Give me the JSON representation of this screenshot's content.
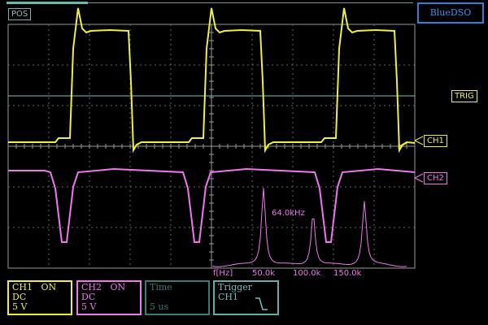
{
  "header": {
    "mode_label": "POS",
    "brand": "BlueDSO",
    "progress_fraction": 0.2
  },
  "markers": {
    "trigger": "TRIG",
    "ch1": "CH1",
    "ch2": "CH2"
  },
  "spectrum": {
    "peak_label": "64.0kHz",
    "axis_unit": "f[Hz]",
    "ticks": [
      "50.0k",
      "100.0k",
      "150.0k"
    ]
  },
  "status": {
    "ch1": {
      "name": "CH1",
      "state": "ON",
      "coupling": "DC",
      "scale": "5 V"
    },
    "ch2": {
      "name": "CH2",
      "state": "ON",
      "coupling": "DC",
      "scale": "5 V"
    },
    "time": {
      "title": "Time",
      "scale": "5 us"
    },
    "trigger": {
      "title": "Trigger",
      "source": "CH1",
      "edge": "falling"
    }
  },
  "colors": {
    "ch1": "#eeee44",
    "ch2": "#ee77ee",
    "grid": "#888888",
    "trigger_line": "#7fbfbf",
    "brand": "#2a7fe0"
  }
}
